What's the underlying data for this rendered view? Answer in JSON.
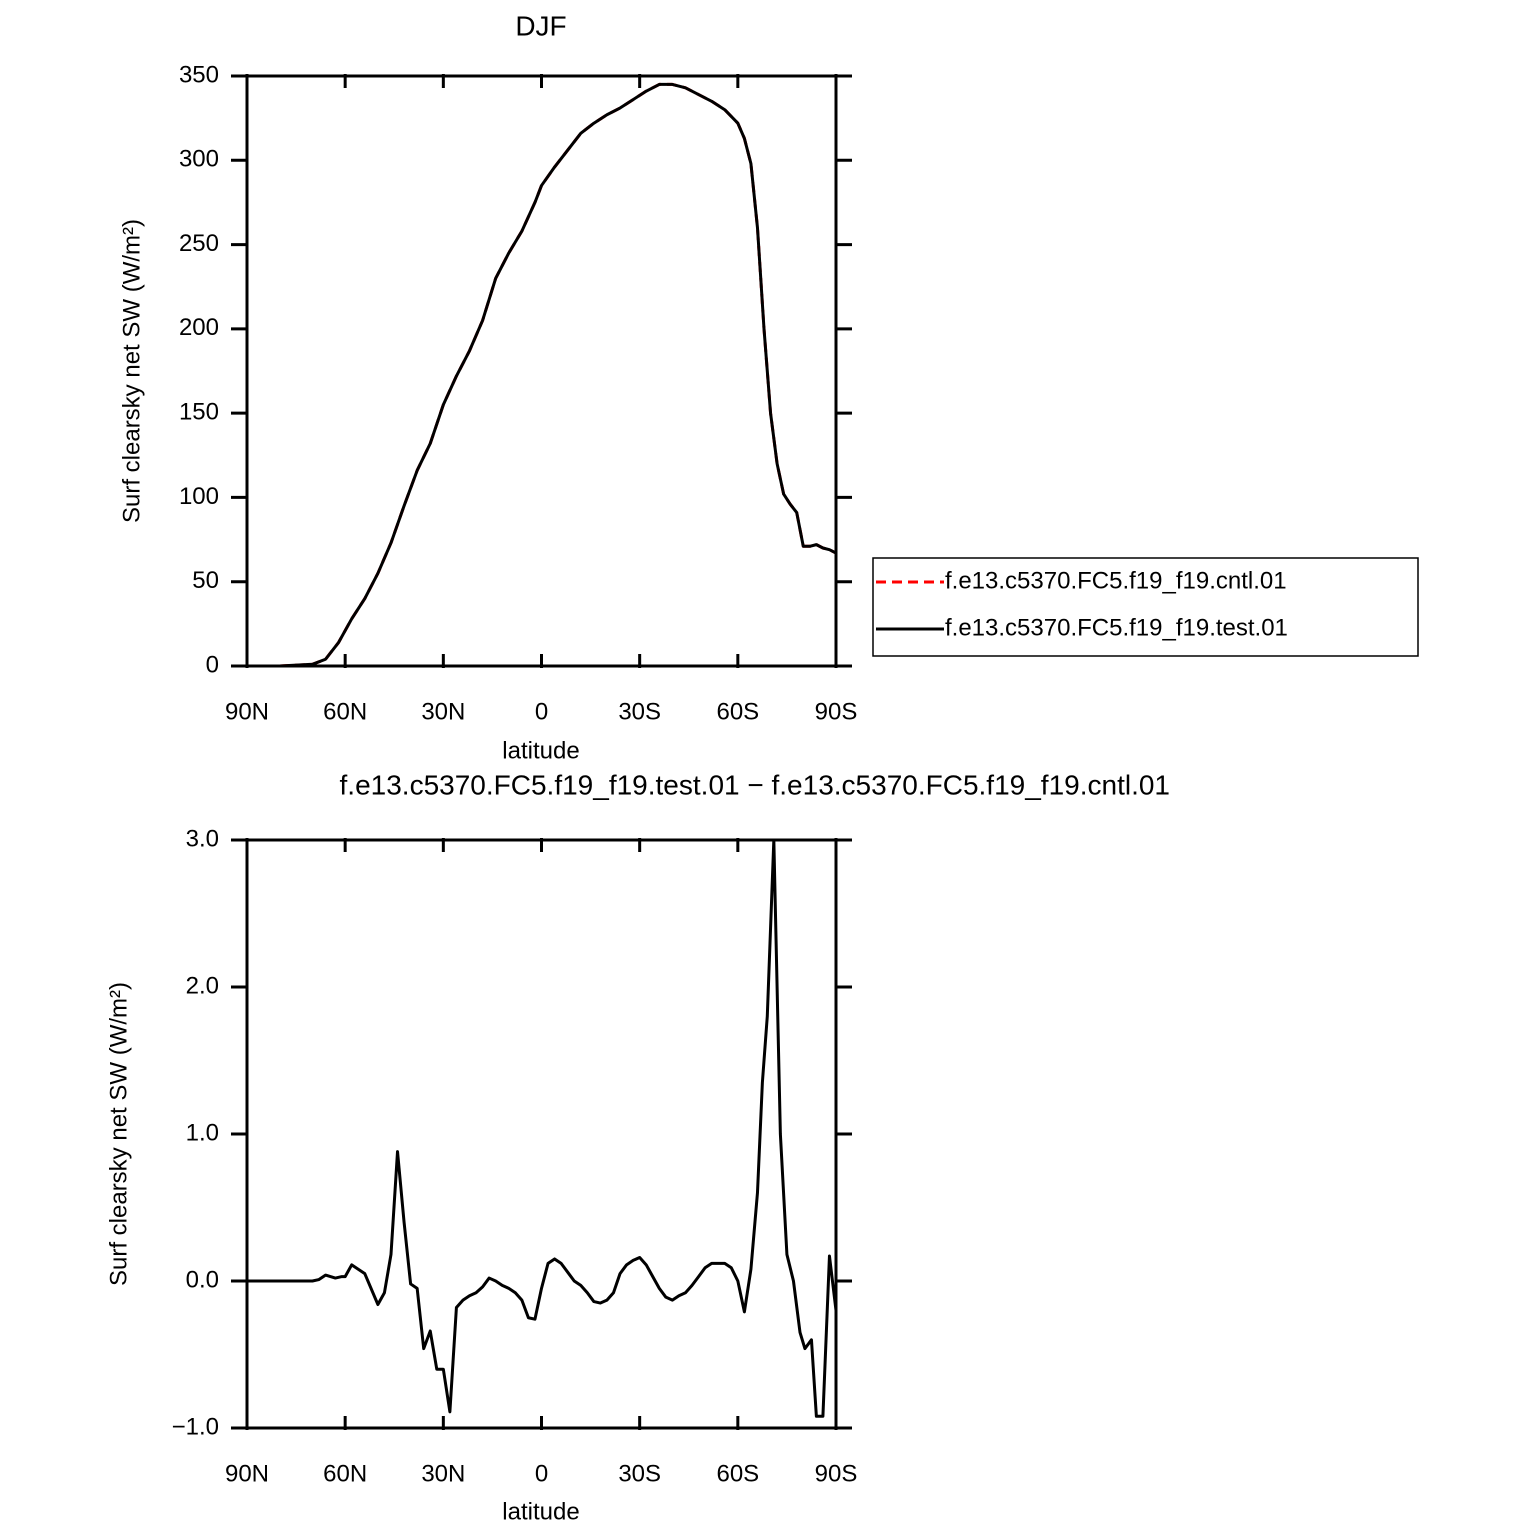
{
  "chart_data": [
    {
      "type": "line",
      "title": "DJF",
      "x_label": "latitude",
      "y_label": "Surf clearsky net SW (W/m²)",
      "xlim": [
        90,
        -90
      ],
      "xticks": [
        {
          "value": 90,
          "label": "90N"
        },
        {
          "value": 60,
          "label": "60N"
        },
        {
          "value": 30,
          "label": "30N"
        },
        0,
        {
          "value": -30,
          "label": "30S"
        },
        {
          "value": -60,
          "label": "60S"
        },
        {
          "value": -90,
          "label": "90S"
        }
      ],
      "ylim": [
        0,
        350
      ],
      "yticks": [
        0,
        50,
        100,
        150,
        200,
        250,
        300,
        350
      ],
      "x": [
        90,
        80,
        70,
        66,
        62,
        58,
        54,
        50,
        46,
        42,
        38,
        34,
        30,
        26,
        22,
        18,
        14,
        10,
        6,
        2,
        0,
        -4,
        -8,
        -12,
        -16,
        -20,
        -24,
        -28,
        -32,
        -36,
        -40,
        -44,
        -48,
        -52,
        -56,
        -60,
        -62,
        -64,
        -66,
        -68,
        -70,
        -72,
        -74,
        -76,
        -78,
        -80,
        -82,
        -84,
        -86,
        -88,
        -90
      ],
      "series": [
        {
          "name": "f.e13.c5370.FC5.f19_f19.cntl.01",
          "color": "#ff0000",
          "style": "dashed",
          "values": [
            0,
            0,
            1,
            4,
            14,
            28,
            40,
            55,
            73,
            95,
            116,
            132,
            155,
            172,
            187,
            205,
            230,
            245,
            258,
            275,
            285,
            296,
            306,
            316,
            322,
            327,
            331,
            336,
            341,
            345,
            345,
            343,
            339,
            335,
            330,
            322,
            313,
            298,
            260,
            200,
            150,
            120,
            102,
            96,
            91,
            71,
            71,
            72,
            70,
            69,
            67
          ]
        },
        {
          "name": "f.e13.c5370.FC5.f19_f19.test.01",
          "color": "#000000",
          "style": "solid",
          "values": [
            0,
            0,
            1,
            4,
            14,
            28,
            40,
            55,
            73,
            95,
            116,
            132,
            155,
            172,
            187,
            205,
            230,
            245,
            258,
            275,
            285,
            296,
            306,
            316,
            322,
            327,
            331,
            336,
            341,
            345,
            345,
            343,
            339,
            335,
            330,
            322,
            313,
            298,
            260,
            200,
            150,
            120,
            102,
            96,
            91,
            71,
            71,
            72,
            70,
            69,
            67
          ]
        }
      ]
    },
    {
      "type": "line",
      "title": "f.e13.c5370.FC5.f19_f19.test.01 − f.e13.c5370.FC5.f19_f19.cntl.01",
      "x_label": "latitude",
      "y_label": "Surf clearsky net SW (W/m²)",
      "xlim": [
        90,
        -90
      ],
      "xticks": [
        {
          "value": 90,
          "label": "90N"
        },
        {
          "value": 60,
          "label": "60N"
        },
        {
          "value": 30,
          "label": "30N"
        },
        0,
        {
          "value": -30,
          "label": "30S"
        },
        {
          "value": -60,
          "label": "60S"
        },
        {
          "value": -90,
          "label": "90S"
        }
      ],
      "ylim": [
        -1,
        3
      ],
      "yticks": [
        {
          "value": -1,
          "label": "−1.0"
        },
        {
          "value": 0,
          "label": "0.0"
        },
        {
          "value": 1,
          "label": "1.0"
        },
        {
          "value": 2,
          "label": "2.0"
        },
        {
          "value": 3,
          "label": "3.0"
        }
      ],
      "x": [
        90,
        70,
        68,
        66,
        63,
        61,
        60,
        58,
        54,
        50,
        48,
        46,
        44,
        42,
        40,
        38,
        36,
        34,
        32,
        30,
        28,
        26,
        24,
        22,
        20,
        18,
        16,
        14,
        12,
        10,
        8,
        6,
        4,
        2,
        0,
        -2,
        -4,
        -6,
        -8,
        -10,
        -12,
        -14,
        -16,
        -18,
        -20,
        -22,
        -24,
        -26,
        -28,
        -30,
        -32,
        -34,
        -36,
        -38,
        -40,
        -42,
        -44,
        -46,
        -48,
        -50,
        -52,
        -54,
        -56,
        -58,
        -60,
        -62,
        -64,
        -66,
        -67.5,
        -69,
        -71,
        -73,
        -75,
        -77,
        -79,
        -80.5,
        -82.5,
        -84,
        -86,
        -88,
        -90
      ],
      "series": [
        {
          "color": "#000000",
          "style": "solid",
          "values": [
            0,
            0,
            0.01,
            0.04,
            0.02,
            0.03,
            0.03,
            0.11,
            0.05,
            -0.16,
            -0.08,
            0.18,
            0.88,
            0.4,
            -0.02,
            -0.05,
            -0.46,
            -0.34,
            -0.6,
            -0.6,
            -0.89,
            -0.18,
            -0.13,
            -0.1,
            -0.08,
            -0.04,
            0.02,
            0.0,
            -0.03,
            -0.05,
            -0.08,
            -0.13,
            -0.25,
            -0.26,
            -0.05,
            0.12,
            0.15,
            0.12,
            0.06,
            0.0,
            -0.03,
            -0.08,
            -0.14,
            -0.15,
            -0.13,
            -0.08,
            0.05,
            0.11,
            0.14,
            0.16,
            0.11,
            0.03,
            -0.05,
            -0.11,
            -0.13,
            -0.1,
            -0.08,
            -0.03,
            0.03,
            0.09,
            0.12,
            0.12,
            0.12,
            0.09,
            0.0,
            -0.21,
            0.08,
            0.6,
            1.35,
            1.8,
            3.0,
            1.0,
            0.18,
            0.0,
            -0.35,
            -0.46,
            -0.4,
            -0.92,
            -0.92,
            0.17,
            -0.2
          ]
        }
      ]
    }
  ]
}
